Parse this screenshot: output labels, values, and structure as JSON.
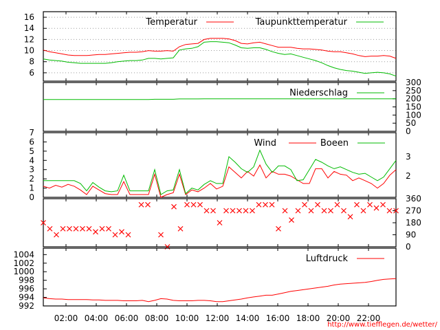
{
  "chart_data": [
    {
      "type": "line",
      "ylim": [
        4.5,
        17
      ],
      "yticks": [
        6,
        8,
        10,
        12,
        14,
        16
      ],
      "grid": true,
      "legend_position": "top-right",
      "series": [
        {
          "name": "Temperatur",
          "color": "#ff0000",
          "values": [
            10.1,
            9.8,
            9.6,
            9.4,
            9.2,
            9.1,
            9.1,
            9.1,
            9.2,
            9.3,
            9.3,
            9.4,
            9.5,
            9.6,
            9.7,
            9.7,
            9.8,
            10.0,
            9.9,
            9.9,
            10.0,
            9.9,
            10.7,
            11.1,
            11.2,
            11.3,
            12.0,
            12.2,
            12.2,
            12.2,
            12.1,
            11.8,
            11.3,
            11.2,
            11.4,
            11.5,
            11.2,
            10.9,
            10.6,
            10.6,
            10.6,
            10.4,
            10.3,
            10.3,
            10.2,
            10.1,
            9.9,
            9.8,
            9.8,
            9.6,
            9.4,
            9.1,
            8.9,
            9.0,
            9.0,
            9.1,
            9.0,
            8.6
          ]
        },
        {
          "name": "Taupunkttemperatur",
          "color": "#00bb00",
          "values": [
            8.5,
            8.3,
            8.2,
            8.1,
            7.9,
            7.8,
            7.7,
            7.7,
            7.7,
            7.7,
            7.7,
            7.8,
            8.0,
            8.1,
            8.2,
            8.2,
            8.3,
            8.6,
            8.6,
            8.5,
            8.6,
            8.7,
            10.1,
            10.3,
            10.4,
            10.7,
            11.5,
            11.6,
            11.6,
            11.5,
            11.4,
            11.0,
            10.5,
            10.4,
            10.5,
            10.5,
            10.2,
            9.8,
            9.5,
            9.3,
            9.4,
            9.1,
            8.8,
            8.5,
            8.2,
            7.8,
            7.3,
            6.9,
            6.6,
            6.4,
            6.3,
            6.1,
            5.9,
            6.0,
            6.1,
            6.0,
            5.8,
            5.4
          ]
        }
      ]
    },
    {
      "type": "line",
      "ylim": [
        0,
        300
      ],
      "yticks": [
        0,
        50,
        100,
        150,
        200,
        250,
        300
      ],
      "series": [
        {
          "name": "Niederschlag",
          "color": "#00bb00",
          "values": [
            195,
            195,
            195,
            195,
            195,
            195,
            195,
            195,
            195,
            195,
            195,
            195,
            195,
            195,
            195,
            195,
            195,
            195,
            197,
            197,
            197,
            197,
            199,
            199,
            199,
            199,
            200,
            200,
            200,
            200,
            200,
            200,
            200,
            200,
            200,
            200,
            200,
            200,
            200,
            200,
            200,
            200,
            200,
            200,
            200,
            200,
            200,
            200,
            200,
            200,
            200,
            200,
            200,
            200,
            200,
            200,
            200,
            200
          ]
        }
      ]
    },
    {
      "type": "line",
      "ylim": [
        0,
        7
      ],
      "yticks": [
        0,
        1,
        2,
        3,
        4,
        5,
        6,
        7
      ],
      "right_ticks": [
        "3",
        "2"
      ],
      "series": [
        {
          "name": "Wind",
          "color": "#ff0000",
          "values": [
            1.2,
            1.0,
            1.3,
            1.1,
            1.4,
            1.2,
            0.8,
            0.3,
            1.2,
            0.8,
            0.4,
            0.3,
            0.3,
            1.7,
            0.3,
            0.3,
            0.3,
            0.3,
            2.5,
            0.0,
            0.3,
            0.5,
            2.5,
            0.3,
            0.8,
            0.6,
            1.0,
            1.5,
            0.9,
            1.2,
            3.3,
            2.7,
            2.1,
            2.8,
            2.3,
            3.5,
            2.1,
            2.8,
            2.5,
            2.5,
            2.3,
            1.9,
            1.5,
            1.5,
            3.1,
            3.1,
            2.1,
            2.8,
            2.5,
            2.4,
            1.8,
            2.1,
            1.8,
            1.5,
            1.0,
            1.5,
            2.4,
            3.0
          ]
        },
        {
          "name": "Boeen",
          "color": "#00bb00",
          "values": [
            1.8,
            1.8,
            1.8,
            1.8,
            1.8,
            1.8,
            1.5,
            0.7,
            1.6,
            1.1,
            0.7,
            0.6,
            0.7,
            2.4,
            0.7,
            0.7,
            0.7,
            0.7,
            3.0,
            0.3,
            0.7,
            0.8,
            3.0,
            0.4,
            1.0,
            0.8,
            1.4,
            1.8,
            1.5,
            1.5,
            4.4,
            3.8,
            3.1,
            2.7,
            3.3,
            5.1,
            3.6,
            2.7,
            3.4,
            3.4,
            3.0,
            1.8,
            1.9,
            3.0,
            4.1,
            3.8,
            3.4,
            3.1,
            3.3,
            3.0,
            2.7,
            2.5,
            2.6,
            2.2,
            1.8,
            2.2,
            3.1,
            4.0
          ]
        }
      ]
    },
    {
      "type": "scatter",
      "ylim": [
        0,
        360
      ],
      "yticks": [
        0,
        90,
        180,
        270,
        360
      ],
      "marker": "x",
      "color": "#ff0000",
      "values": [
        180,
        135,
        90,
        135,
        135,
        135,
        135,
        135,
        112,
        135,
        135,
        90,
        112,
        90,
        null,
        315,
        315,
        null,
        90,
        0,
        300,
        135,
        315,
        315,
        315,
        270,
        270,
        180,
        270,
        270,
        270,
        270,
        270,
        315,
        315,
        315,
        135,
        270,
        200,
        270,
        315,
        270,
        315,
        270,
        270,
        315,
        270,
        225,
        315,
        270,
        315,
        290,
        315,
        270,
        270
      ]
    },
    {
      "type": "line",
      "ylim": [
        992,
        1005.5
      ],
      "yticks": [
        992,
        994,
        996,
        998,
        1000,
        1002,
        1004
      ],
      "series": [
        {
          "name": "Luftdruck",
          "color": "#ff0000",
          "values": [
            993.9,
            993.7,
            993.6,
            993.6,
            993.5,
            993.5,
            993.5,
            993.5,
            993.4,
            993.4,
            993.3,
            993.3,
            993.3,
            993.2,
            993.2,
            993.2,
            993.3,
            993.0,
            993.3,
            993.7,
            993.6,
            993.3,
            993.2,
            993.2,
            993.2,
            993.3,
            993.3,
            993.2,
            993.0,
            993.0,
            993.2,
            993.4,
            993.6,
            993.9,
            994.1,
            994.3,
            994.5,
            994.5,
            994.8,
            995.1,
            995.4,
            995.6,
            995.8,
            996.0,
            996.2,
            996.4,
            996.6,
            996.9,
            997.1,
            997.2,
            997.3,
            997.4,
            997.5,
            997.7,
            998.0,
            998.2,
            998.3,
            998.4
          ]
        }
      ]
    }
  ],
  "x_labels": [
    "02:00",
    "04:00",
    "06:00",
    "08:00",
    "10:00",
    "12:00",
    "14:00",
    "16:00",
    "18:00",
    "20:00",
    "22:00"
  ],
  "credit": "http://www.tiefflegen.de/wetter/",
  "colors": {
    "accent_red": "#ff0000",
    "accent_green": "#00bb00",
    "grid": "#999999"
  }
}
